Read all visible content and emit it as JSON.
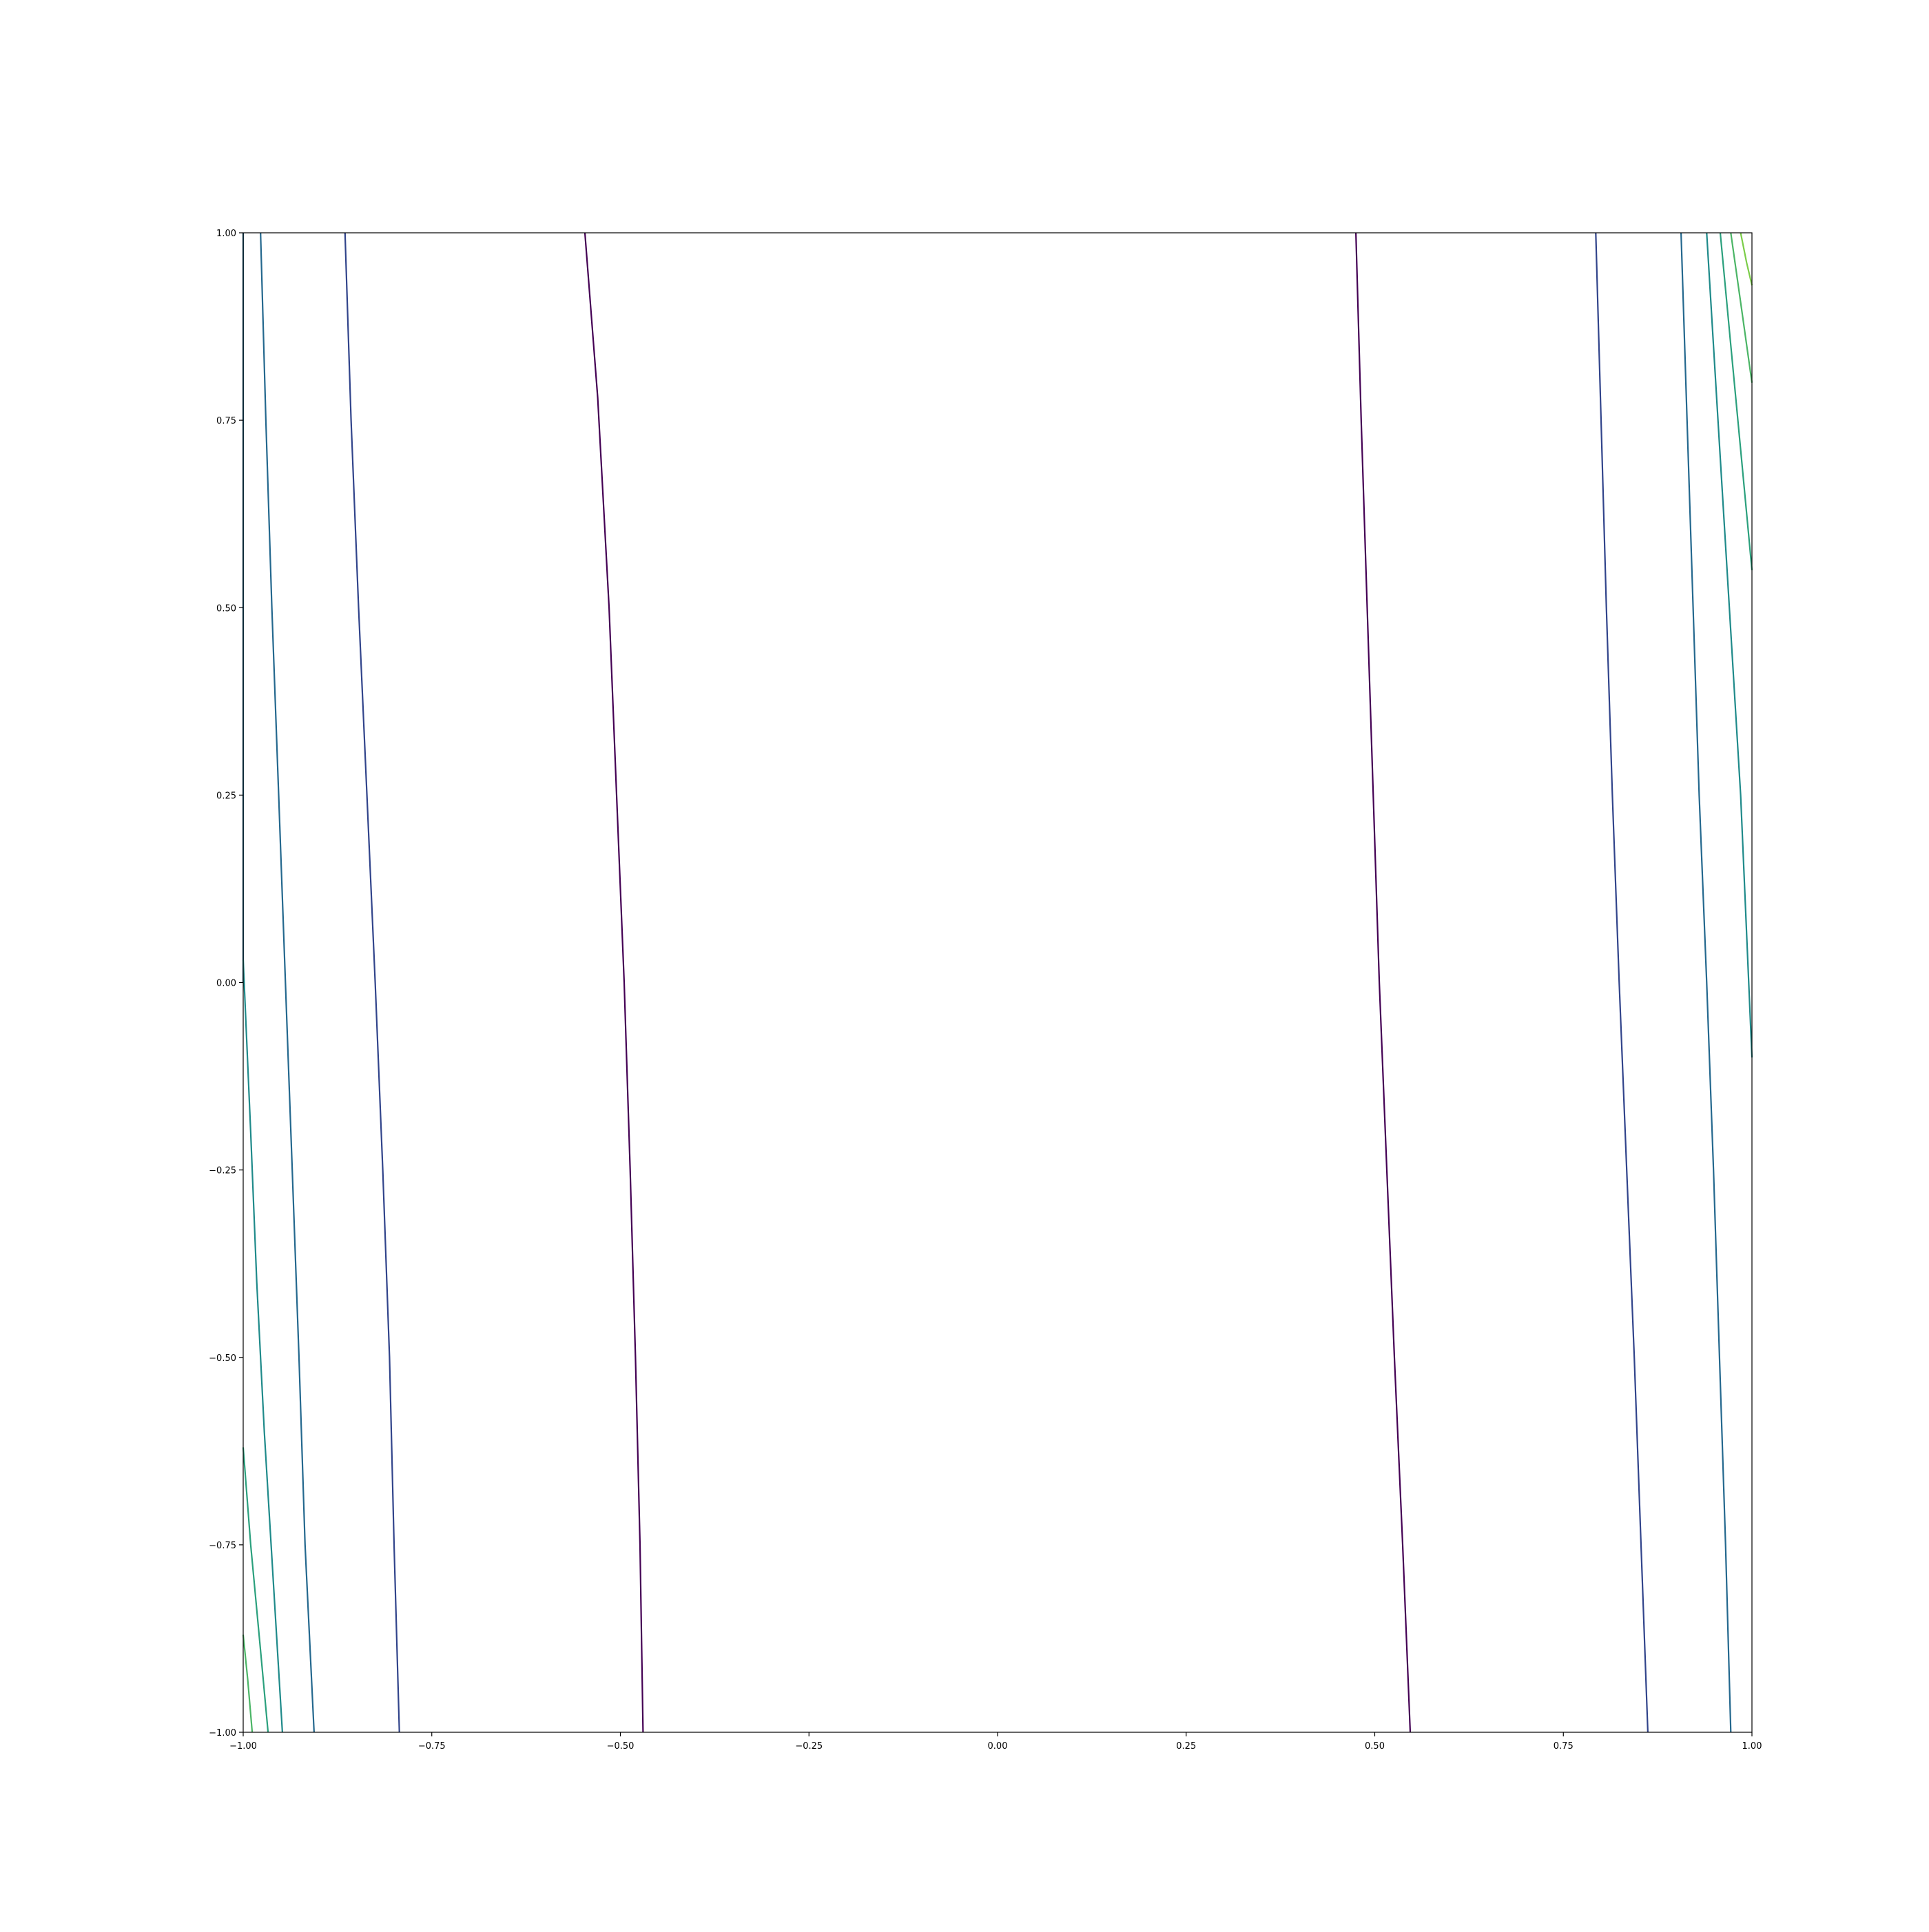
{
  "chart_data": {
    "type": "contour",
    "title": "",
    "xlabel": "",
    "ylabel": "",
    "xlim": [
      -1.0,
      1.0
    ],
    "ylim": [
      -1.0,
      1.0
    ],
    "grid": false,
    "legend": "none",
    "x_ticks": [
      "−1.00",
      "−0.75",
      "−0.50",
      "−0.25",
      "0.00",
      "0.25",
      "0.50",
      "0.75",
      "1.00"
    ],
    "x_tick_values": [
      -1.0,
      -0.75,
      -0.5,
      -0.25,
      0.0,
      0.25,
      0.5,
      0.75,
      1.0
    ],
    "y_ticks": [
      "−1.00",
      "−0.75",
      "−0.50",
      "−0.25",
      "0.00",
      "0.25",
      "0.50",
      "0.75",
      "1.00"
    ],
    "y_tick_values": [
      -1.0,
      -0.75,
      -0.5,
      -0.25,
      0.0,
      0.25,
      0.5,
      0.75,
      1.0
    ],
    "colormap": "viridis",
    "contours": [
      {
        "level_index": 0,
        "color": "#440154",
        "points": [
          [
            -0.547,
            1.0
          ],
          [
            -0.53,
            0.78
          ],
          [
            -0.515,
            0.5
          ],
          [
            -0.505,
            0.25
          ],
          [
            -0.495,
            0.0
          ],
          [
            -0.487,
            -0.25
          ],
          [
            -0.48,
            -0.5
          ],
          [
            -0.474,
            -0.75
          ],
          [
            -0.47,
            -1.0
          ]
        ]
      },
      {
        "level_index": 0,
        "color": "#440154",
        "points": [
          [
            0.475,
            1.0
          ],
          [
            0.482,
            0.75
          ],
          [
            0.49,
            0.5
          ],
          [
            0.498,
            0.25
          ],
          [
            0.506,
            0.0
          ],
          [
            0.516,
            -0.25
          ],
          [
            0.526,
            -0.5
          ],
          [
            0.537,
            -0.75
          ],
          [
            0.547,
            -1.0
          ]
        ]
      },
      {
        "level_index": 1,
        "color": "#31448b",
        "points": [
          [
            -0.865,
            1.0
          ],
          [
            -0.857,
            0.75
          ],
          [
            -0.847,
            0.5
          ],
          [
            -0.836,
            0.25
          ],
          [
            -0.825,
            0.0
          ],
          [
            -0.815,
            -0.25
          ],
          [
            -0.806,
            -0.5
          ],
          [
            -0.8,
            -0.75
          ],
          [
            -0.793,
            -1.0
          ]
        ]
      },
      {
        "level_index": 1,
        "color": "#31448b",
        "points": [
          [
            0.793,
            1.0
          ],
          [
            0.8,
            0.75
          ],
          [
            0.807,
            0.5
          ],
          [
            0.815,
            0.25
          ],
          [
            0.824,
            0.0
          ],
          [
            0.834,
            -0.25
          ],
          [
            0.844,
            -0.5
          ],
          [
            0.853,
            -0.75
          ],
          [
            0.862,
            -1.0
          ]
        ]
      },
      {
        "level_index": 2,
        "color": "#24688e",
        "points": [
          [
            -1.0,
            1.0
          ],
          [
            -1.0,
            0.0
          ]
        ]
      },
      {
        "level_index": 2,
        "color": "#24688e",
        "points": [
          [
            -0.977,
            1.0
          ],
          [
            -0.97,
            0.75
          ],
          [
            -0.962,
            0.5
          ],
          [
            -0.953,
            0.25
          ],
          [
            -0.944,
            0.0
          ],
          [
            -0.935,
            -0.25
          ],
          [
            -0.926,
            -0.5
          ],
          [
            -0.918,
            -0.75
          ],
          [
            -0.906,
            -1.0
          ]
        ]
      },
      {
        "level_index": 2,
        "color": "#24688e",
        "points": [
          [
            0.906,
            1.0
          ],
          [
            0.914,
            0.75
          ],
          [
            0.922,
            0.5
          ],
          [
            0.93,
            0.25
          ],
          [
            0.94,
            0.0
          ],
          [
            0.949,
            -0.25
          ],
          [
            0.957,
            -0.5
          ],
          [
            0.965,
            -0.75
          ],
          [
            0.972,
            -1.0
          ]
        ]
      },
      {
        "level_index": 3,
        "color": "#1f8a8a",
        "points": [
          [
            -1.0,
            0.03
          ],
          [
            -0.99,
            -0.2
          ],
          [
            -0.982,
            -0.4
          ],
          [
            -0.972,
            -0.6
          ],
          [
            -0.96,
            -0.8
          ],
          [
            -0.948,
            -1.0
          ]
        ]
      },
      {
        "level_index": 3,
        "color": "#1f8a8a",
        "points": [
          [
            0.94,
            1.0
          ],
          [
            0.955,
            0.75
          ],
          [
            0.97,
            0.5
          ],
          [
            0.985,
            0.25
          ],
          [
            1.0,
            -0.1
          ]
        ]
      },
      {
        "level_index": 4,
        "color": "#2ba07d",
        "points": [
          [
            -1.0,
            -0.62
          ],
          [
            -0.99,
            -0.75
          ],
          [
            -0.978,
            -0.88
          ],
          [
            -0.967,
            -1.0
          ]
        ]
      },
      {
        "level_index": 4,
        "color": "#2ba07d",
        "points": [
          [
            0.958,
            1.0
          ],
          [
            0.972,
            0.85
          ],
          [
            0.986,
            0.7
          ],
          [
            1.0,
            0.55
          ]
        ]
      },
      {
        "level_index": 5,
        "color": "#4bb566",
        "points": [
          [
            -1.0,
            -0.87
          ],
          [
            -0.994,
            -0.93
          ],
          [
            -0.988,
            -1.0
          ]
        ]
      },
      {
        "level_index": 5,
        "color": "#4bb566",
        "points": [
          [
            0.972,
            1.0
          ],
          [
            0.986,
            0.9
          ],
          [
            1.0,
            0.8
          ]
        ]
      },
      {
        "level_index": 6,
        "color": "#7ccd4a",
        "points": [
          [
            0.985,
            1.0
          ],
          [
            0.993,
            0.96
          ],
          [
            1.0,
            0.93
          ]
        ]
      }
    ]
  }
}
